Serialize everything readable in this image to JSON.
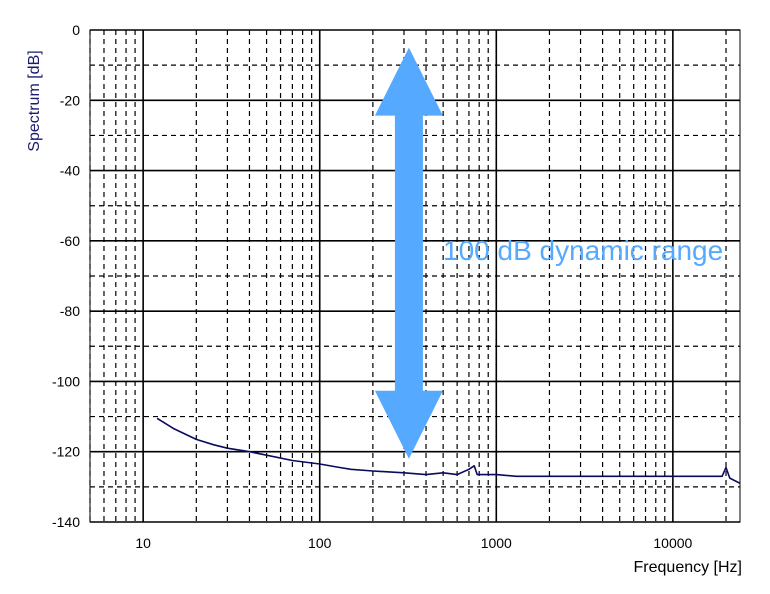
{
  "chart_data": {
    "type": "line",
    "title": "",
    "xlabel": "Frequency [Hz]",
    "ylabel": "Spectrum [dB]",
    "x_scale": "log",
    "xlim": [
      5,
      24000
    ],
    "ylim": [
      -140,
      0
    ],
    "x_ticks": [
      10,
      100,
      1000,
      10000
    ],
    "x_tick_labels": [
      "10",
      "100",
      "1000",
      "10000"
    ],
    "y_ticks": [
      0,
      -20,
      -40,
      -60,
      -80,
      -100,
      -120,
      -140
    ],
    "y_tick_labels": [
      "0",
      "-20",
      "-40",
      "-60",
      "-80",
      "-100",
      "-120",
      "-140"
    ],
    "grid": true,
    "series": [
      {
        "color": "#0a0a5e",
        "x": [
          12,
          15,
          20,
          25,
          30,
          40,
          50,
          70,
          100,
          130,
          150,
          200,
          300,
          400,
          500,
          600,
          700,
          750,
          780,
          800,
          900,
          1000,
          1300,
          2000,
          3000,
          5000,
          7000,
          10000,
          15000,
          19000,
          20000,
          21000,
          24000
        ],
        "y": [
          -110.5,
          -113.5,
          -116.5,
          -118,
          -119,
          -120,
          -121,
          -122.5,
          -123.5,
          -124.5,
          -125,
          -125.5,
          -126,
          -126.5,
          -126,
          -126.5,
          -125,
          -124,
          -126.5,
          -126.5,
          -126.5,
          -126.5,
          -127,
          -127,
          -127,
          -127,
          -127,
          -127,
          -127,
          -127,
          -124.5,
          -127.5,
          -129
        ]
      }
    ],
    "annotation": {
      "text": "100 dB dynamic range",
      "color": "#55aaff",
      "arrow_x": 320,
      "arrow_y_range": [
        -5,
        -122
      ]
    }
  }
}
